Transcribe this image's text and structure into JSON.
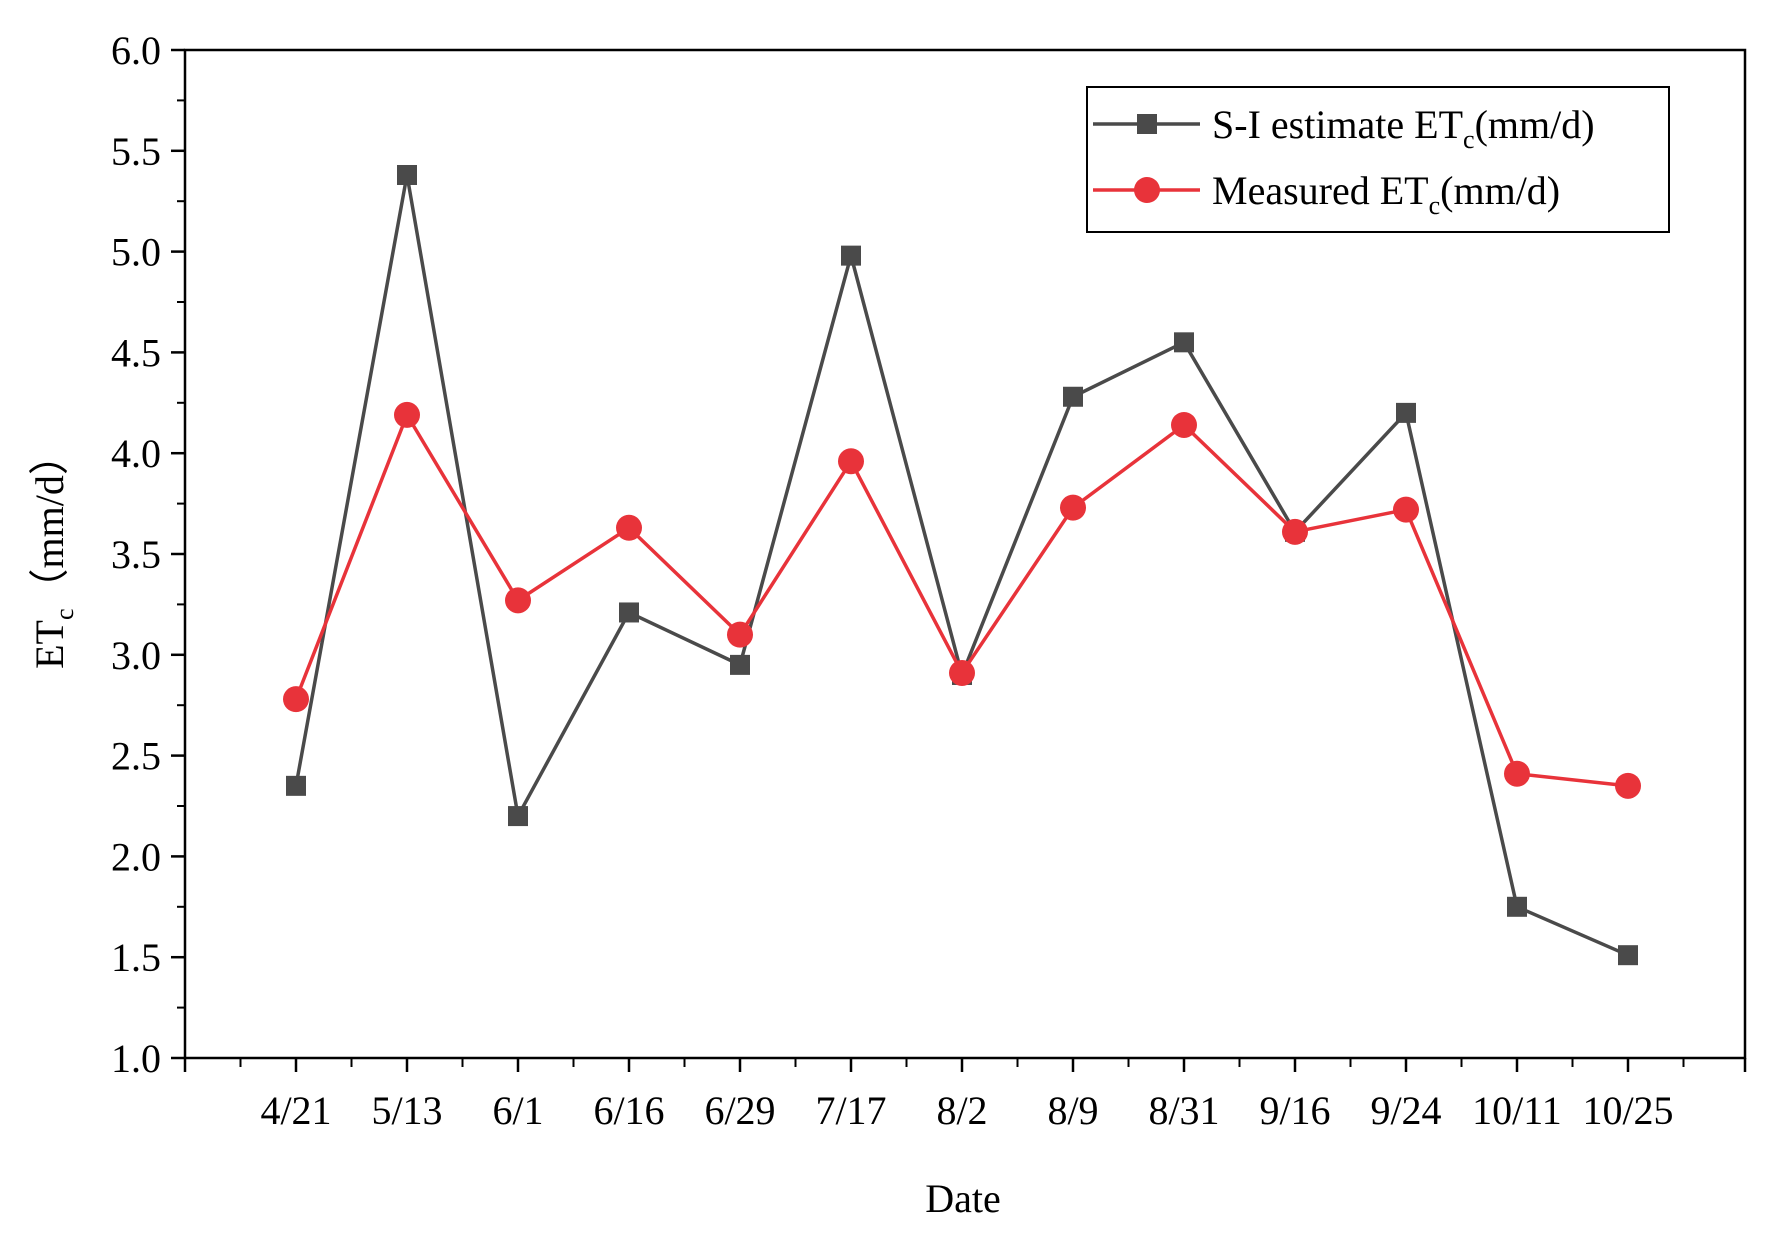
{
  "chart_data": {
    "type": "line",
    "title": "",
    "xlabel": "Date",
    "ylabel_main": "ET",
    "ylabel_sub": "c",
    "ylabel_unit": "（mm/d）",
    "ylim": [
      1.0,
      6.0
    ],
    "yticks": [
      "1.0",
      "1.5",
      "2.0",
      "2.5",
      "3.0",
      "3.5",
      "4.0",
      "4.5",
      "5.0",
      "5.5",
      "6.0"
    ],
    "categories": [
      "4/21",
      "5/13",
      "6/1",
      "6/16",
      "6/29",
      "7/17",
      "8/2",
      "8/9",
      "8/31",
      "9/16",
      "9/24",
      "10/11",
      "10/25"
    ],
    "legend_position": "top-right",
    "series": [
      {
        "name_main": "S-I estimate ET",
        "name_sub": "c",
        "name_unit": "(mm/d)",
        "color": "#4a4a4a",
        "marker": "square",
        "values": [
          2.35,
          5.38,
          2.2,
          3.21,
          2.95,
          4.98,
          2.9,
          4.28,
          4.55,
          3.61,
          4.2,
          1.75,
          1.51
        ]
      },
      {
        "name_main": "Measured ET",
        "name_sub": "c",
        "name_unit": "(mm/d)",
        "color": "#e8333a",
        "marker": "circle",
        "values": [
          2.78,
          4.19,
          3.27,
          3.63,
          3.1,
          3.96,
          2.91,
          3.73,
          4.14,
          3.61,
          3.72,
          2.41,
          2.35
        ]
      }
    ]
  }
}
